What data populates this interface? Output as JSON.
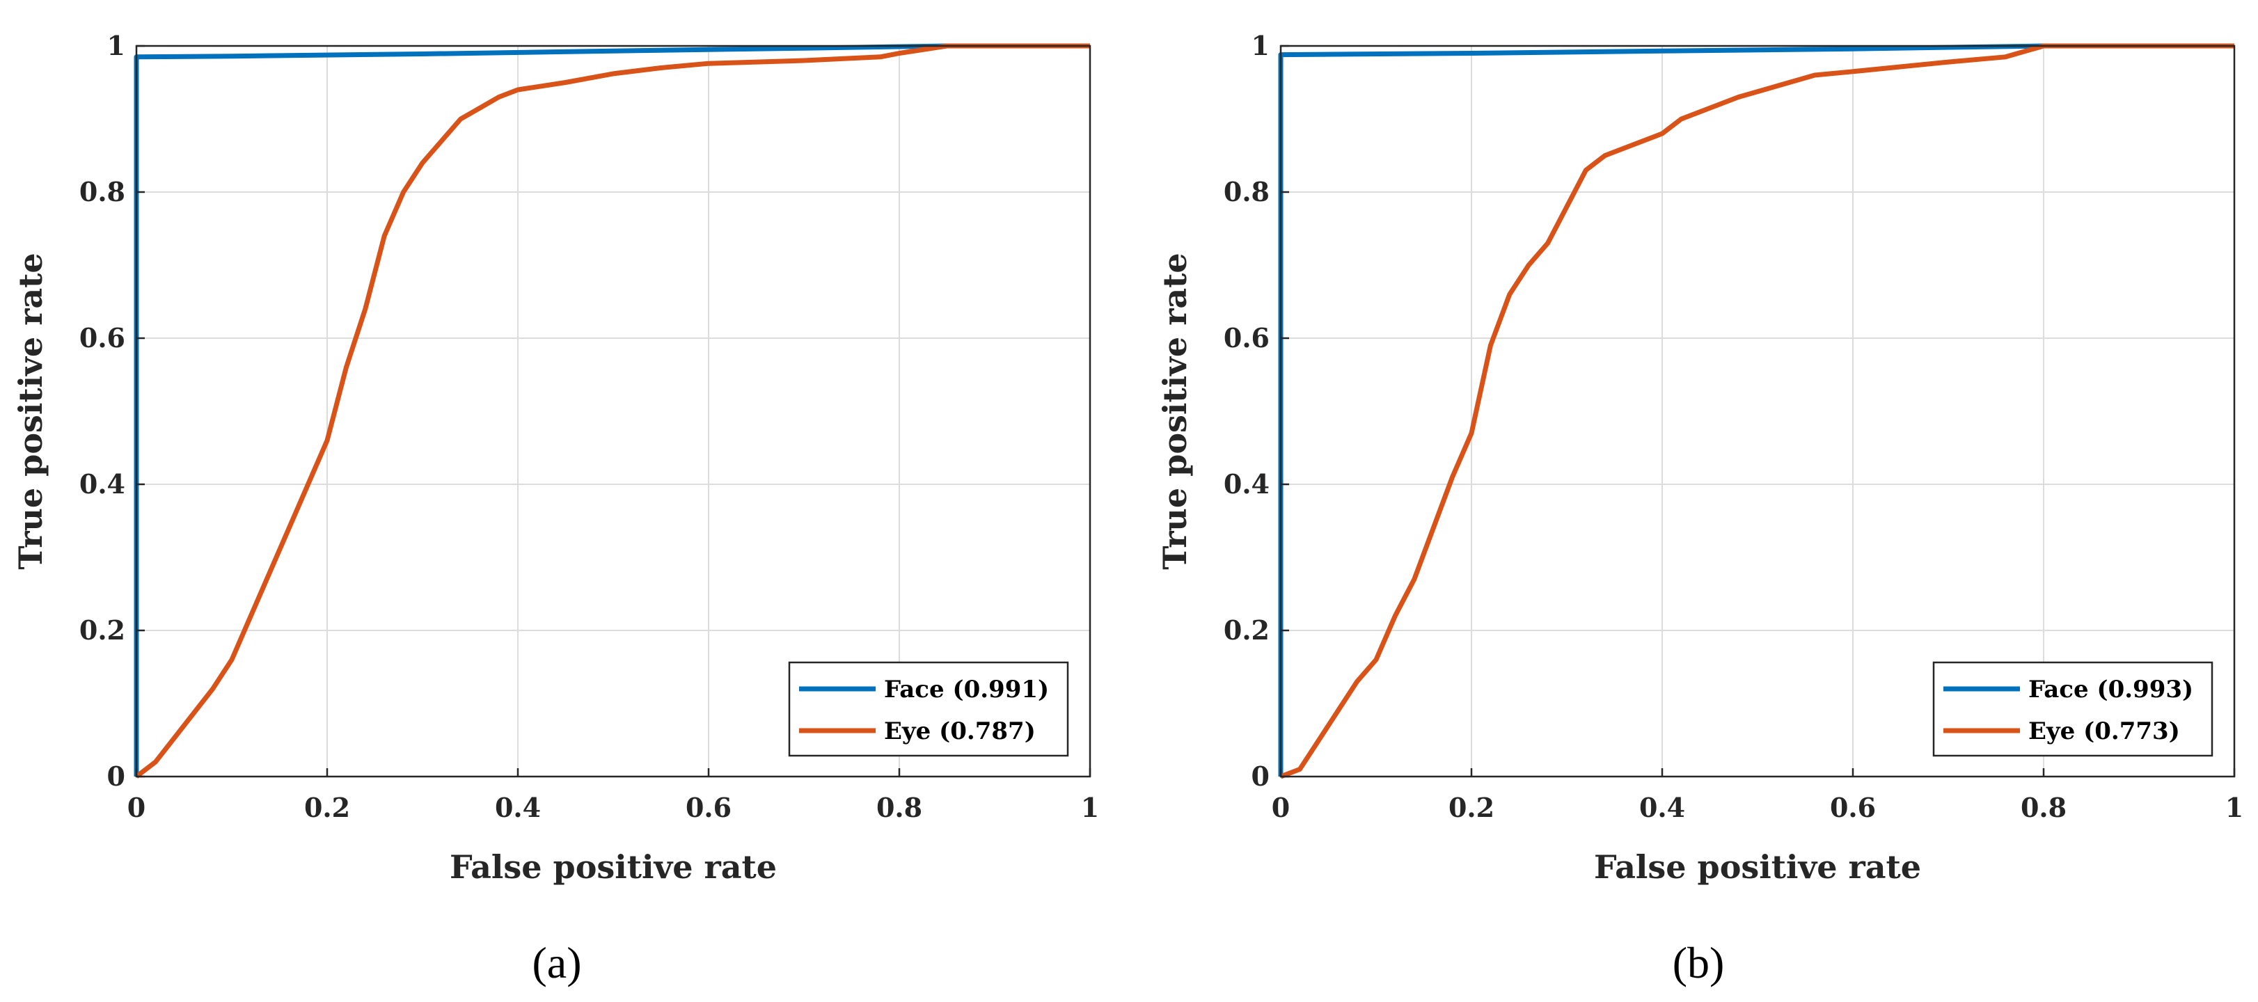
{
  "chart_data": [
    {
      "type": "line",
      "caption": "(a)",
      "xlabel": "False positive rate",
      "ylabel": "True positive rate",
      "xlim": [
        0,
        1
      ],
      "ylim": [
        0,
        1
      ],
      "grid": true,
      "legend_position": "bottom-right",
      "x_ticks": [
        "0",
        "0.2",
        "0.4",
        "0.6",
        "0.8",
        "1"
      ],
      "y_ticks": [
        "0",
        "0.2",
        "0.4",
        "0.6",
        "0.8",
        "1"
      ],
      "series": [
        {
          "name": "Face (0.991)",
          "color": "#0072BD",
          "points": [
            [
              0,
              0
            ],
            [
              0,
              0.985
            ],
            [
              0.1,
              0.986
            ],
            [
              0.3,
              0.989
            ],
            [
              0.5,
              0.993
            ],
            [
              0.7,
              0.997
            ],
            [
              0.85,
              1.0
            ],
            [
              1,
              1
            ]
          ]
        },
        {
          "name": "Eye (0.787)",
          "color": "#D95319",
          "points": [
            [
              0,
              0
            ],
            [
              0.02,
              0.02
            ],
            [
              0.05,
              0.07
            ],
            [
              0.08,
              0.12
            ],
            [
              0.1,
              0.16
            ],
            [
              0.12,
              0.22
            ],
            [
              0.14,
              0.28
            ],
            [
              0.16,
              0.34
            ],
            [
              0.18,
              0.4
            ],
            [
              0.2,
              0.46
            ],
            [
              0.22,
              0.56
            ],
            [
              0.24,
              0.64
            ],
            [
              0.26,
              0.74
            ],
            [
              0.28,
              0.8
            ],
            [
              0.3,
              0.84
            ],
            [
              0.32,
              0.87
            ],
            [
              0.34,
              0.9
            ],
            [
              0.36,
              0.915
            ],
            [
              0.38,
              0.93
            ],
            [
              0.4,
              0.94
            ],
            [
              0.45,
              0.95
            ],
            [
              0.5,
              0.962
            ],
            [
              0.55,
              0.97
            ],
            [
              0.6,
              0.976
            ],
            [
              0.7,
              0.98
            ],
            [
              0.78,
              0.985
            ],
            [
              0.8,
              0.99
            ],
            [
              0.85,
              1.0
            ],
            [
              1,
              1
            ]
          ]
        }
      ]
    },
    {
      "type": "line",
      "caption": "(b)",
      "xlabel": "False positive rate",
      "ylabel": "True positive rate",
      "xlim": [
        0,
        1
      ],
      "ylim": [
        0,
        1
      ],
      "grid": true,
      "legend_position": "bottom-right",
      "x_ticks": [
        "0",
        "0.2",
        "0.4",
        "0.6",
        "0.8",
        "1"
      ],
      "y_ticks": [
        "0",
        "0.2",
        "0.4",
        "0.6",
        "0.8",
        "1"
      ],
      "series": [
        {
          "name": "Face (0.993)",
          "color": "#0072BD",
          "points": [
            [
              0,
              0
            ],
            [
              0,
              0.988
            ],
            [
              0.2,
              0.99
            ],
            [
              0.4,
              0.993
            ],
            [
              0.6,
              0.996
            ],
            [
              0.8,
              1.0
            ],
            [
              1,
              1
            ]
          ]
        },
        {
          "name": "Eye (0.773)",
          "color": "#D95319",
          "points": [
            [
              0,
              0
            ],
            [
              0.02,
              0.01
            ],
            [
              0.04,
              0.05
            ],
            [
              0.06,
              0.09
            ],
            [
              0.08,
              0.13
            ],
            [
              0.1,
              0.16
            ],
            [
              0.12,
              0.22
            ],
            [
              0.14,
              0.27
            ],
            [
              0.16,
              0.34
            ],
            [
              0.18,
              0.41
            ],
            [
              0.2,
              0.47
            ],
            [
              0.21,
              0.53
            ],
            [
              0.22,
              0.59
            ],
            [
              0.24,
              0.66
            ],
            [
              0.26,
              0.7
            ],
            [
              0.28,
              0.73
            ],
            [
              0.3,
              0.78
            ],
            [
              0.32,
              0.83
            ],
            [
              0.34,
              0.85
            ],
            [
              0.36,
              0.86
            ],
            [
              0.38,
              0.87
            ],
            [
              0.4,
              0.88
            ],
            [
              0.42,
              0.9
            ],
            [
              0.44,
              0.91
            ],
            [
              0.48,
              0.93
            ],
            [
              0.52,
              0.945
            ],
            [
              0.56,
              0.96
            ],
            [
              0.6,
              0.965
            ],
            [
              0.7,
              0.978
            ],
            [
              0.76,
              0.985
            ],
            [
              0.8,
              1.0
            ],
            [
              1,
              1
            ]
          ]
        }
      ]
    }
  ]
}
